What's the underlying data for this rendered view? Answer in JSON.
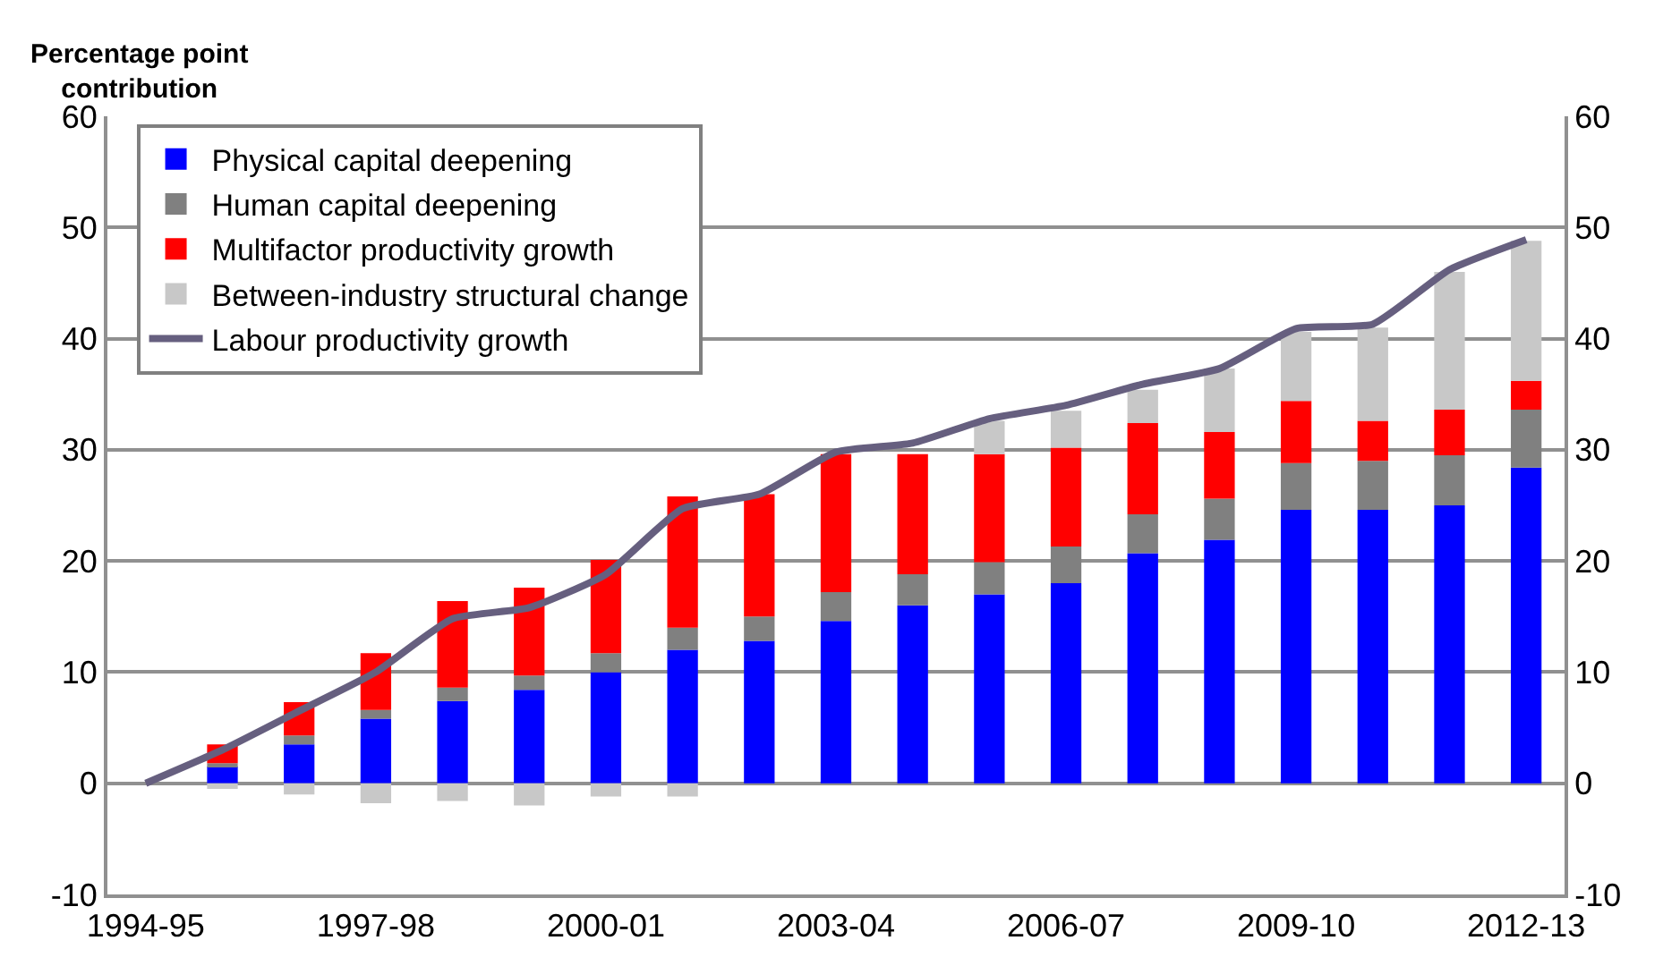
{
  "chart_data": {
    "type": "bar",
    "stacked": true,
    "ylabel": "Percentage point contribution",
    "categories": [
      "1994-95",
      null,
      null,
      "1997-98",
      null,
      null,
      "2000-01",
      null,
      null,
      "2003-04",
      null,
      null,
      "2006-07",
      null,
      null,
      "2009-10",
      null,
      null,
      "2012-13"
    ],
    "series": [
      {
        "name": "Physical capital deepening",
        "color": "#0000ff",
        "values": [
          null,
          1.5,
          3.5,
          5.8,
          7.4,
          8.4,
          10.0,
          12.0,
          12.8,
          14.6,
          16.0,
          17.0,
          18.0,
          20.7,
          21.9,
          24.6,
          24.6,
          25.0,
          28.4
        ]
      },
      {
        "name": "Human capital deepening",
        "color": "#808080",
        "values": [
          null,
          0.3,
          0.8,
          0.8,
          1.2,
          1.3,
          1.7,
          2.0,
          2.2,
          2.6,
          2.8,
          2.9,
          3.3,
          3.5,
          3.7,
          4.2,
          4.4,
          4.5,
          5.2
        ]
      },
      {
        "name": "Multifactor productivity growth",
        "color": "#ff0000",
        "values": [
          null,
          1.7,
          3.0,
          5.1,
          7.8,
          7.9,
          8.4,
          11.8,
          11.0,
          12.4,
          10.8,
          9.7,
          8.9,
          8.2,
          6.0,
          5.6,
          3.6,
          4.1,
          2.6
        ]
      },
      {
        "name": "Between-industry structural change",
        "color": "#c8c8c8",
        "values": [
          null,
          -0.5,
          -1.0,
          -1.8,
          -1.6,
          -2.0,
          -1.2,
          -1.2,
          null,
          null,
          null,
          3.0,
          3.3,
          3.0,
          5.7,
          6.2,
          8.4,
          12.4,
          12.6
        ]
      },
      {
        "name": "Labour productivity growth",
        "type": "line",
        "color": "#665f7f",
        "values": [
          0,
          3.0,
          6.5,
          10.0,
          14.8,
          15.8,
          18.8,
          24.7,
          26.0,
          29.8,
          30.6,
          32.8,
          34.0,
          35.9,
          37.3,
          40.9,
          41.3,
          46.2,
          48.9
        ]
      }
    ],
    "ylim": [
      -10,
      60
    ],
    "yticks": [
      -10,
      0,
      10,
      20,
      30,
      40,
      50,
      60
    ],
    "y2lim": [
      -10,
      60
    ],
    "y2ticks": [
      -10,
      0,
      10,
      20,
      30,
      40,
      50,
      60
    ],
    "grid": "y",
    "legend": "top left"
  }
}
